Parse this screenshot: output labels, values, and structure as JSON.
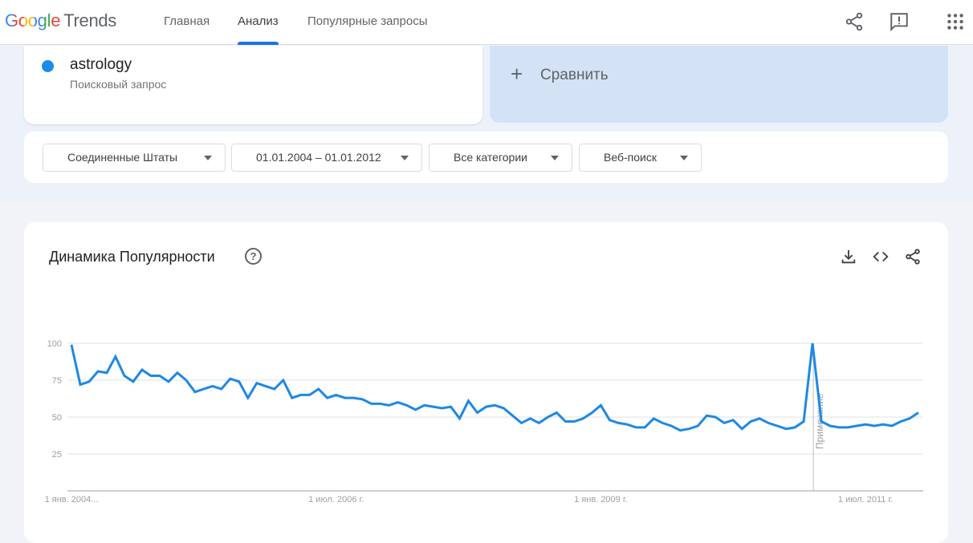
{
  "header": {
    "logo_google": "Google",
    "logo_trends": "Trends",
    "nav": [
      {
        "label": "Главная",
        "active": false
      },
      {
        "label": "Анализ",
        "active": true
      },
      {
        "label": "Популярные запросы",
        "active": false
      }
    ],
    "icons": [
      "share-icon",
      "feedback-icon",
      "apps-icon"
    ]
  },
  "term": {
    "label": "astrology",
    "type": "Поисковый запрос",
    "color": "#1a8be8"
  },
  "compare": {
    "icon": "plus-icon",
    "label": "Сравнить"
  },
  "filters": [
    {
      "value": "Соединенные Штаты"
    },
    {
      "value": "01.01.2004 – 01.01.2012"
    },
    {
      "value": "Все категории"
    },
    {
      "value": "Веб-поиск"
    }
  ],
  "chart_section": {
    "title": "Динамика Популярности",
    "icons": [
      "help-icon",
      "download-icon",
      "embed-icon",
      "share-icon"
    ]
  },
  "chart_data": {
    "type": "line",
    "x_start": "2004-01",
    "x_end": "2012-01",
    "x_interval": "month",
    "ylim": [
      0,
      100
    ],
    "y_ticks": [
      "25",
      "50",
      "75",
      "100"
    ],
    "x_ticks": [
      {
        "label": "1 янв. 2004...",
        "index": 0
      },
      {
        "label": "1 июл. 2006 г.",
        "index": 30
      },
      {
        "label": "1 янв. 2009 г.",
        "index": 60
      },
      {
        "label": "1 июл. 2011 г.",
        "index": 90
      }
    ],
    "grid": true,
    "series": [
      {
        "color": "#1e88e5",
        "values": [
          99,
          72,
          74,
          81,
          80,
          91,
          78,
          74,
          82,
          78,
          78,
          74,
          80,
          75,
          67,
          69,
          71,
          69,
          76,
          74,
          63,
          73,
          71,
          69,
          75,
          63,
          65,
          65,
          69,
          63,
          65,
          63,
          63,
          62,
          59,
          59,
          58,
          60,
          58,
          55,
          58,
          57,
          56,
          57,
          49,
          61,
          53,
          57,
          58,
          56,
          51,
          46,
          49,
          46,
          50,
          53,
          47,
          47,
          49,
          53,
          58,
          48,
          46,
          45,
          43,
          43,
          49,
          46,
          44,
          41,
          42,
          44,
          51,
          50,
          46,
          48,
          42,
          47,
          49,
          46,
          44,
          42,
          43,
          47,
          100,
          47,
          44,
          43,
          43,
          44,
          45,
          44,
          45,
          44,
          47,
          49,
          53
        ]
      }
    ],
    "annotation": {
      "label": "Примечание",
      "index": 84
    }
  }
}
